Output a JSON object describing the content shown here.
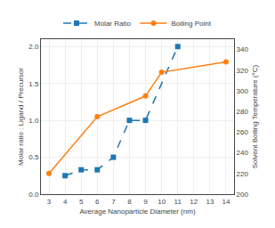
{
  "chart_data": {
    "type": "line",
    "xlabel": "Average Nanoparticle Diameter (nm)",
    "ylabel": "Molar ratio : Ligand / Precursor",
    "y2label": "Solvent Boiling Temperature (°C)",
    "series": [
      {
        "name": "Molar Ratio",
        "x": [
          4,
          5,
          6,
          7,
          8,
          9,
          11
        ],
        "values": [
          0.25,
          0.33,
          0.33,
          0.5,
          1.0,
          1.0,
          2.0
        ],
        "marker": "square",
        "line_style": "dashed"
      },
      {
        "name": "Boiling Point",
        "axis": "y2",
        "x": [
          3,
          6,
          9,
          10,
          14
        ],
        "values": [
          220,
          275,
          295,
          318,
          328
        ],
        "marker": "circle",
        "line_style": "solid"
      }
    ],
    "xlim": [
      2.5,
      14.5
    ],
    "xticks": [
      3,
      4,
      5,
      6,
      7,
      8,
      9,
      10,
      11,
      12,
      13,
      14
    ],
    "ylim": [
      0,
      2.1
    ],
    "yticks": [
      {
        "value": 0,
        "label": "0.0"
      },
      0.5,
      {
        "value": 1,
        "label": "1.0"
      },
      1.5,
      {
        "value": 2,
        "label": "2.0"
      }
    ],
    "y2lim": [
      200,
      350
    ],
    "y2ticks": [
      200,
      220,
      240,
      260,
      280,
      300,
      320,
      340
    ],
    "grid": true,
    "legend": "top"
  }
}
